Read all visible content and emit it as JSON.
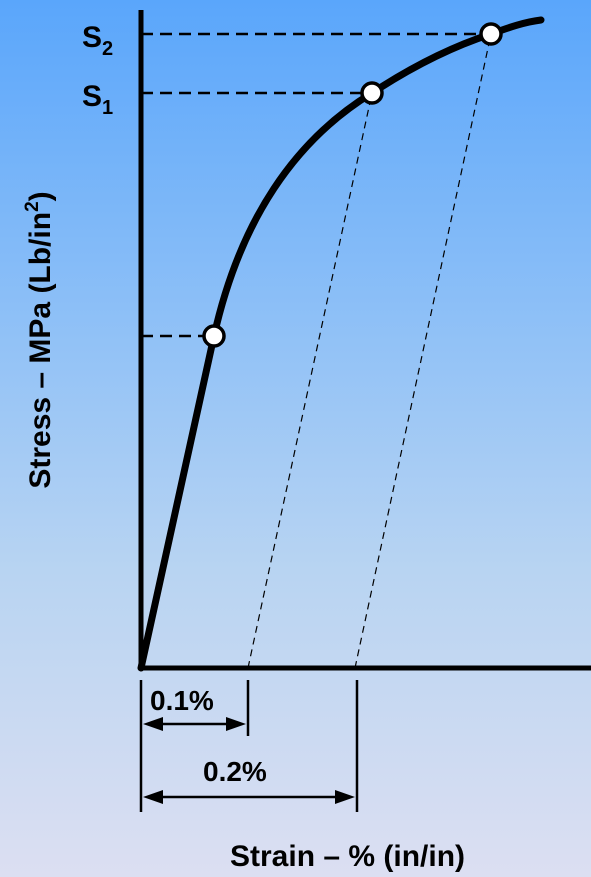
{
  "diagram": {
    "y_axis_label": "Stress – MPa (Lb/in",
    "y_axis_label_sup": "2",
    "y_axis_label_end": ")",
    "x_axis_label": "Strain – % (in/in)",
    "levels": [
      {
        "id": "s2",
        "base": "S",
        "sub": "2"
      },
      {
        "id": "s1",
        "base": "S",
        "sub": "1"
      }
    ],
    "offsets": [
      {
        "id": "offset-0.1",
        "label": "0.1%",
        "strain_percent": 0.1
      },
      {
        "id": "offset-0.2",
        "label": "0.2%",
        "strain_percent": 0.2
      }
    ]
  },
  "colors": {
    "curve": "#000000",
    "marker_fill": "#ffffff",
    "background_top": "#5aa6fb",
    "background_bottom": "#dcdff2"
  }
}
